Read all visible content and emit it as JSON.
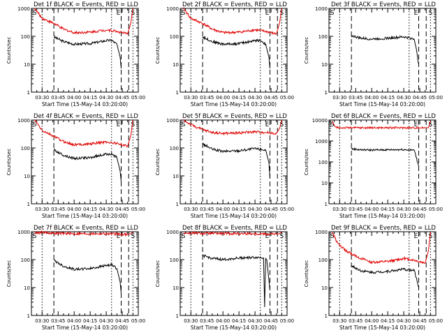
{
  "figure": {
    "xlabel": "Start Time (15-May-14 03:20:00)",
    "ylabel": "Counts/sec",
    "x_tick_labels": [
      "03:30",
      "03:45",
      "04:00",
      "04:15",
      "04:30",
      "04:45",
      "05:00"
    ],
    "y_tick_labels": [
      "1",
      "10",
      "100",
      "1000"
    ],
    "colors": {
      "events": "#000000",
      "lld": "#e00000",
      "axes": "#000000"
    }
  },
  "chart_data": [
    {
      "type": "line",
      "title": "Det 1f BLACK = Events, RED = LLD",
      "xlabel": "Start Time (15-May-14 03:20:00)",
      "ylabel": "Counts/sec",
      "xlim": [
        "03:20",
        "05:00"
      ],
      "ylim": [
        1,
        1000
      ],
      "yscale": "log",
      "markers": {
        "S": "03:23",
        "E": "04:44",
        "S2": "04:55"
      },
      "series": [
        {
          "name": "Events",
          "x": [
            "03:41",
            "03:50",
            "04:00",
            "04:15",
            "04:30",
            "04:35",
            "04:40",
            "04:43",
            "04:44"
          ],
          "y": [
            95,
            65,
            52,
            55,
            70,
            72,
            52,
            18,
            7
          ]
        },
        {
          "name": "LLD",
          "x": [
            "03:23",
            "03:30",
            "03:41",
            "03:50",
            "04:00",
            "04:15",
            "04:30",
            "04:40",
            "04:50",
            "04:53",
            "04:55"
          ],
          "y": [
            1000,
            440,
            290,
            180,
            135,
            140,
            170,
            150,
            120,
            300,
            1000
          ]
        }
      ]
    },
    {
      "type": "line",
      "title": "Det 2f BLACK = Events, RED = LLD",
      "xlabel": "Start Time (15-May-14 03:20:00)",
      "ylabel": "Counts/sec",
      "xlim": [
        "03:20",
        "05:00"
      ],
      "ylim": [
        1,
        1000
      ],
      "yscale": "log",
      "markers": {
        "S": "03:23",
        "E": "04:44",
        "S2": "04:55"
      },
      "series": [
        {
          "name": "Events",
          "x": [
            "03:41",
            "03:50",
            "04:00",
            "04:15",
            "04:30",
            "04:35",
            "04:40",
            "04:43",
            "04:44"
          ],
          "y": [
            95,
            65,
            52,
            55,
            70,
            72,
            52,
            18,
            7
          ]
        },
        {
          "name": "LLD",
          "x": [
            "03:23",
            "03:30",
            "03:41",
            "03:50",
            "04:00",
            "04:15",
            "04:30",
            "04:40",
            "04:50",
            "04:53",
            "04:55"
          ],
          "y": [
            1000,
            440,
            290,
            180,
            135,
            140,
            170,
            150,
            120,
            300,
            1000
          ]
        }
      ]
    },
    {
      "type": "line",
      "title": "Det 3f BLACK = Events, RED = LLD",
      "xlabel": "Start Time (15-May-14 03:20:00)",
      "ylabel": "Counts/sec",
      "xlim": [
        "03:20",
        "05:00"
      ],
      "ylim": [
        1,
        1000
      ],
      "yscale": "log",
      "markers": {
        "S": "03:23",
        "E": "04:44",
        "S2": "04:55"
      },
      "series": [
        {
          "name": "Events",
          "x": [
            "03:41",
            "03:50",
            "04:00",
            "04:15",
            "04:30",
            "04:40",
            "04:44"
          ],
          "y": [
            105,
            85,
            80,
            85,
            95,
            80,
            10
          ]
        }
      ]
    },
    {
      "type": "line",
      "title": "Det 4f BLACK = Events, RED = LLD",
      "xlabel": "Start Time (15-May-14 03:20:00)",
      "ylabel": "Counts/sec",
      "xlim": [
        "03:20",
        "05:00"
      ],
      "ylim": [
        1,
        1000
      ],
      "yscale": "log",
      "markers": {
        "S": "03:23",
        "E": "04:44",
        "S2": "04:55"
      },
      "series": [
        {
          "name": "Events",
          "x": [
            "03:41",
            "03:50",
            "04:00",
            "04:15",
            "04:30",
            "04:35",
            "04:40",
            "04:43",
            "04:44"
          ],
          "y": [
            85,
            55,
            42,
            45,
            60,
            62,
            45,
            15,
            6
          ]
        },
        {
          "name": "LLD",
          "x": [
            "03:23",
            "03:30",
            "03:41",
            "03:50",
            "04:00",
            "04:15",
            "04:30",
            "04:40",
            "04:50",
            "04:53",
            "04:55"
          ],
          "y": [
            1000,
            420,
            260,
            170,
            130,
            140,
            165,
            145,
            115,
            280,
            1000
          ]
        }
      ]
    },
    {
      "type": "line",
      "title": "Det 5f BLACK = Events, RED = LLD",
      "xlabel": "Start Time (15-May-14 03:20:00)",
      "ylabel": "Counts/sec",
      "xlim": [
        "03:20",
        "05:00"
      ],
      "ylim": [
        1,
        1000
      ],
      "yscale": "log",
      "markers": {
        "S": "03:23",
        "E": "04:44",
        "S2": "04:55"
      },
      "series": [
        {
          "name": "Events",
          "x": [
            "03:41",
            "03:50",
            "04:00",
            "04:15",
            "04:30",
            "04:40",
            "04:43",
            "04:44"
          ],
          "y": [
            140,
            90,
            75,
            80,
            95,
            85,
            30,
            8
          ]
        },
        {
          "name": "LLD",
          "x": [
            "03:23",
            "03:30",
            "03:41",
            "03:50",
            "04:00",
            "04:15",
            "04:30",
            "04:40",
            "04:50",
            "04:53",
            "04:55"
          ],
          "y": [
            1000,
            680,
            450,
            360,
            330,
            350,
            380,
            360,
            330,
            500,
            1000
          ]
        }
      ]
    },
    {
      "type": "line",
      "title": "Det 6f BLACK = Events, RED = LLD",
      "xlabel": "Start Time (15-May-14 03:20:00)",
      "ylabel": "Counts/sec",
      "xlim": [
        "03:20",
        "05:00"
      ],
      "ylim": [
        1,
        10000
      ],
      "yscale": "log",
      "markers": {
        "S": "03:23",
        "E": "04:44",
        "S2": "04:55"
      },
      "series": [
        {
          "name": "Events",
          "x": [
            "03:41",
            "03:50",
            "04:00",
            "04:15",
            "04:30",
            "04:40",
            "04:44"
          ],
          "y": [
            420,
            380,
            370,
            380,
            390,
            360,
            60
          ]
        },
        {
          "name": "LLD",
          "x": [
            "03:23",
            "03:26",
            "03:30",
            "03:41",
            "04:00",
            "04:30",
            "04:50",
            "04:53",
            "04:55"
          ],
          "y": [
            9000,
            4500,
            4300,
            4300,
            4300,
            4300,
            4300,
            4300,
            9000
          ]
        }
      ]
    },
    {
      "type": "line",
      "title": "Det 7f BLACK = Events, RED = LLD",
      "xlabel": "Start Time (15-May-14 03:20:00)",
      "ylabel": "Counts/sec",
      "xlim": [
        "03:20",
        "05:00"
      ],
      "ylim": [
        1,
        1000
      ],
      "yscale": "log",
      "markers": {
        "S": "03:23",
        "E": "04:44",
        "S2": "04:55"
      },
      "series": [
        {
          "name": "Events",
          "x": [
            "03:41",
            "03:50",
            "04:00",
            "04:15",
            "04:30",
            "04:35",
            "04:40",
            "04:43",
            "04:44"
          ],
          "y": [
            95,
            58,
            45,
            48,
            62,
            65,
            48,
            16,
            6
          ]
        },
        {
          "name": "LLD",
          "x": [
            "03:23",
            "03:30",
            "03:41",
            "04:00",
            "04:30",
            "04:50",
            "04:53",
            "04:55"
          ],
          "y": [
            900,
            950,
            880,
            850,
            850,
            800,
            850,
            1000
          ]
        }
      ]
    },
    {
      "type": "line",
      "title": "Det 8f BLACK = Events, RED = LLD",
      "xlabel": "Start Time (15-May-14 03:20:00)",
      "ylabel": "Counts/sec",
      "xlim": [
        "03:20",
        "05:00"
      ],
      "ylim": [
        1,
        1000
      ],
      "yscale": "log",
      "markers": {
        "S": "03:23",
        "E": "04:44",
        "S2": "04:55"
      },
      "series": [
        {
          "name": "Events",
          "x": [
            "03:41",
            "03:50",
            "04:00",
            "04:15",
            "04:30",
            "04:38",
            "04:39",
            "04:40",
            "04:41",
            "04:44"
          ],
          "y": [
            140,
            110,
            100,
            115,
            120,
            118,
            2,
            110,
            100,
            8
          ]
        },
        {
          "name": "LLD",
          "x": [
            "03:23",
            "03:30",
            "03:41",
            "04:00",
            "04:30",
            "04:50",
            "04:53",
            "04:55"
          ],
          "y": [
            900,
            880,
            870,
            860,
            850,
            820,
            850,
            1000
          ]
        }
      ]
    },
    {
      "type": "line",
      "title": "Det 9f BLACK = Events, RED = LLD",
      "xlabel": "Start Time (15-May-14 03:20:00)",
      "ylabel": "Counts/sec",
      "xlim": [
        "03:20",
        "05:00"
      ],
      "ylim": [
        1,
        1000
      ],
      "yscale": "log",
      "markers": {
        "S": "03:23",
        "E": "04:44",
        "S2": "04:55"
      },
      "series": [
        {
          "name": "Events",
          "x": [
            "03:41",
            "03:50",
            "04:00",
            "04:15",
            "04:30",
            "04:40",
            "04:44"
          ],
          "y": [
            60,
            40,
            35,
            38,
            45,
            40,
            10
          ]
        },
        {
          "name": "LLD",
          "x": [
            "03:23",
            "03:28",
            "03:35",
            "03:41",
            "03:50",
            "04:00",
            "04:15",
            "04:30",
            "04:40",
            "04:50",
            "04:53",
            "04:55"
          ],
          "y": [
            1000,
            380,
            220,
            160,
            110,
            80,
            85,
            110,
            95,
            75,
            200,
            1000
          ]
        }
      ]
    }
  ]
}
